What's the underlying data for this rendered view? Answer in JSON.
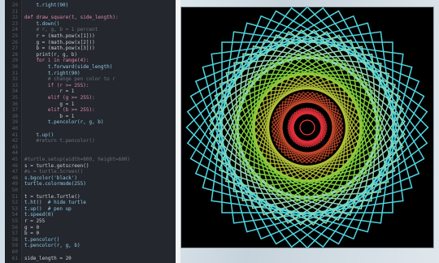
{
  "editor": {
    "lines": [
      {
        "n": "20",
        "t": "    t.right(90)"
      },
      {
        "n": "21",
        "t": ""
      },
      {
        "n": "22",
        "t": "def draw_square(t, side_length):"
      },
      {
        "n": "23",
        "t": "    t.down()"
      },
      {
        "n": "24",
        "t": "    # r, g, b = 1 percent"
      },
      {
        "n": "25",
        "t": "    r = (math.pow(x[1]))"
      },
      {
        "n": "26",
        "t": "    g = (math.pow(x[2]))"
      },
      {
        "n": "27",
        "t": "    b = (math.pow(x[3]))"
      },
      {
        "n": "28",
        "t": "    print(r, g, b)"
      },
      {
        "n": "29",
        "t": "    for i in range(4):"
      },
      {
        "n": "30",
        "t": "        t.forward(side_length)"
      },
      {
        "n": "31",
        "t": "        t.right(90)"
      },
      {
        "n": "32",
        "t": "        # change pen color to r"
      },
      {
        "n": "33",
        "t": "        if (r >= 255):"
      },
      {
        "n": "34",
        "t": "            r = 1"
      },
      {
        "n": "35",
        "t": "        elif (g >= 255):"
      },
      {
        "n": "36",
        "t": "            g = 1"
      },
      {
        "n": "37",
        "t": "        elif (b >= 255):"
      },
      {
        "n": "38",
        "t": "            b = 1"
      },
      {
        "n": "39",
        "t": "        t.pencolor(r, g, b)"
      },
      {
        "n": "40",
        "t": ""
      },
      {
        "n": "41",
        "t": "    t.up()"
      },
      {
        "n": "42",
        "t": "    #return t.pencolor()"
      },
      {
        "n": "43",
        "t": ""
      },
      {
        "n": "44",
        "t": ""
      },
      {
        "n": "45",
        "t": "#turtle.setup(width=800, height=600)"
      },
      {
        "n": "46",
        "t": "s = turtle.getscreen()"
      },
      {
        "n": "47",
        "t": "#s = turtle.Screen()"
      },
      {
        "n": "48",
        "t": "s.bgcolor('black')"
      },
      {
        "n": "49",
        "t": "turtle.colormode(255)"
      },
      {
        "n": "50",
        "t": ""
      },
      {
        "n": "51",
        "t": "t = turtle.Turtle()"
      },
      {
        "n": "52",
        "t": "t.ht()  # hide turtle"
      },
      {
        "n": "53",
        "t": "t.up()  # pen up"
      },
      {
        "n": "54",
        "t": "t.speed(0)"
      },
      {
        "n": "55",
        "t": "r = 255"
      },
      {
        "n": "56",
        "t": "g = 0"
      },
      {
        "n": "57",
        "t": "b = 0"
      },
      {
        "n": "58",
        "t": "t.pencolor()"
      },
      {
        "n": "59",
        "t": "t.pencolor(r, g, b)"
      },
      {
        "n": "60",
        "t": ""
      },
      {
        "n": "61",
        "t": "side_length = 20"
      }
    ]
  },
  "canvas": {
    "background": "#000000",
    "rings": [
      {
        "color": "#4fd6e0",
        "count": 12
      },
      {
        "color": "#8fd6b0",
        "count": 12
      },
      {
        "color": "#7ccd3c",
        "count": 12
      },
      {
        "color": "#b4c23a",
        "count": 12
      },
      {
        "color": "#c84a2c",
        "count": 12
      },
      {
        "color": "#e0303a",
        "count": 12
      }
    ]
  }
}
